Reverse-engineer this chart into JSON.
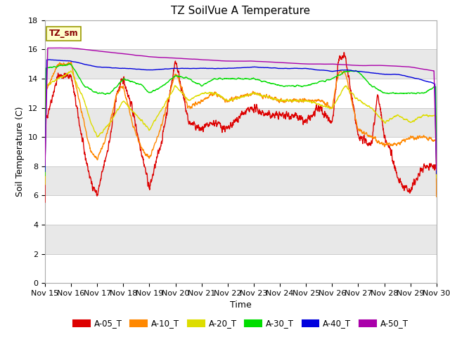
{
  "title": "TZ SoilVue A Temperature",
  "xlabel": "Time",
  "ylabel": "Soil Temperature (C)",
  "ylim": [
    0,
    18
  ],
  "xlim": [
    0,
    360
  ],
  "x_tick_labels": [
    "Nov 15",
    "Nov 16",
    "Nov 17",
    "Nov 18",
    "Nov 19",
    "Nov 20",
    "Nov 21",
    "Nov 22",
    "Nov 23",
    "Nov 24",
    "Nov 25",
    "Nov 26",
    "Nov 27",
    "Nov 28",
    "Nov 29",
    "Nov 30"
  ],
  "legend_label": "TZ_sm",
  "legend_entries": [
    "A-05_T",
    "A-10_T",
    "A-20_T",
    "A-30_T",
    "A-40_T",
    "A-50_T"
  ],
  "line_colors": [
    "#dd0000",
    "#ff8800",
    "#dddd00",
    "#00dd00",
    "#0000dd",
    "#aa00aa"
  ],
  "background_color": "#ffffff",
  "band_color_light": "#ffffff",
  "band_color_dark": "#e8e8e8",
  "title_fontsize": 11,
  "axis_fontsize": 9,
  "tick_fontsize": 8,
  "figwidth": 6.4,
  "figheight": 4.8,
  "dpi": 100
}
